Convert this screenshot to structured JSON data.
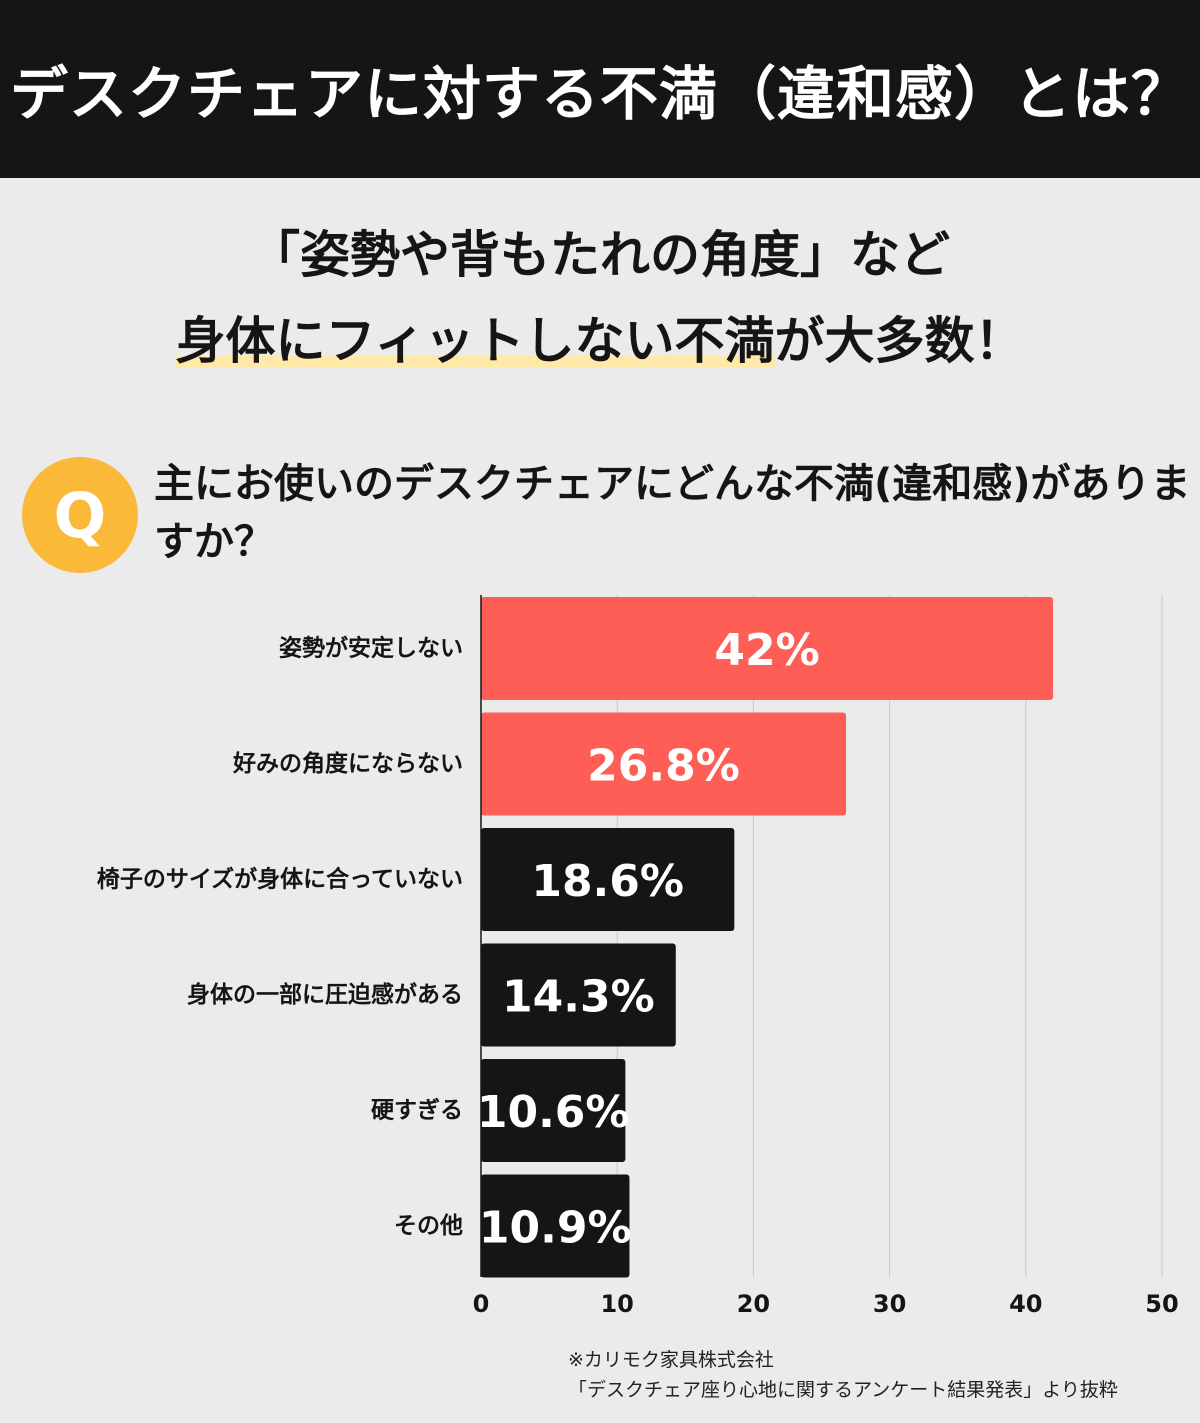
{
  "header": {
    "title": "デスクチェアに対する不満（違和感）とは？"
  },
  "headline": {
    "line1": "「姿勢や背もたれの角度」など",
    "line2_highlight": "身体にフィットしない不満",
    "line2_rest": "が大多数！"
  },
  "question": {
    "badge": "Q",
    "text": "主にお使いのデスクチェアにどんな不満(違和感)がありますか？"
  },
  "colors": {
    "accent": "#fe5e55",
    "dark": "#161414",
    "badge": "#fbb93a",
    "highlight": "#ffe9a8",
    "background": "#ebebeb"
  },
  "chart_data": {
    "type": "bar",
    "orientation": "horizontal",
    "categories": [
      "姿勢が安定しない",
      "好みの角度にならない",
      "椅子のサイズが身体に合っていない",
      "身体の一部に圧迫感がある",
      "硬すぎる",
      "その他"
    ],
    "values": [
      42,
      26.8,
      18.6,
      14.3,
      10.6,
      10.9
    ],
    "data_labels": [
      "42%",
      "26.8%",
      "18.6%",
      "14.3%",
      "10.6%",
      "10.9%"
    ],
    "highlighted": [
      true,
      true,
      false,
      false,
      false,
      false
    ],
    "xlim": [
      0,
      50
    ],
    "xticks": [
      0,
      10,
      20,
      30,
      40,
      50
    ],
    "grid": true,
    "legend": "none"
  },
  "footnote": {
    "line1": "※カリモク家具株式会社",
    "line2": "「デスクチェア座り心地に関するアンケート結果発表」より抜粋"
  }
}
